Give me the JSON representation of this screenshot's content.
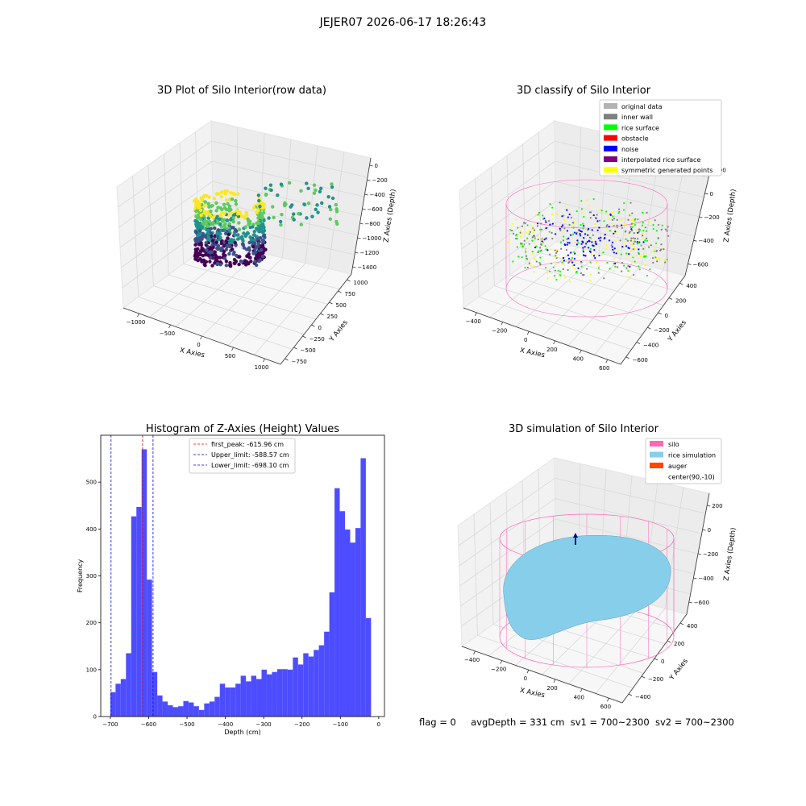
{
  "suptitle": "JEJER07 2026-06-17 18:26:43",
  "status": {
    "flag": "flag = 0",
    "avg_depth": "avgDepth = 331 cm",
    "sv1": "sv1 = 700~2300",
    "sv2": "sv2 = 700~2300"
  },
  "colors": {
    "pane": "#f2f2f2",
    "grid": "#d9d9d9",
    "hist_bar": "#4d4dff",
    "silo": "#ff69b4",
    "rice_sim": "#87ceeb",
    "auger": "#ff4500"
  },
  "chart_data": [
    {
      "type": "scatter",
      "projection": "3d",
      "title": "3D Plot of Silo Interior(row data)",
      "xlabel": "X Axies",
      "ylabel": "Y Axies",
      "zlabel": "Z Axies (Depth)",
      "xticks": [
        "−1000",
        "−500",
        "0",
        "500",
        "1000"
      ],
      "yticks": [
        "−750",
        "−500",
        "−250",
        "0",
        "250",
        "500",
        "750",
        "1000"
      ],
      "zticks": [
        "0",
        "−200",
        "−400",
        "−600",
        "−800",
        "−1000",
        "−1200",
        "−1400"
      ],
      "colormap": "viridis",
      "grid": true
    },
    {
      "type": "scatter",
      "projection": "3d",
      "title": "3D classify of Silo Interior",
      "xlabel": "X Axies",
      "ylabel": "Y Axies",
      "zlabel": "Z Axies (Depth)",
      "xticks": [
        "−400",
        "−200",
        "0",
        "200",
        "400",
        "600"
      ],
      "yticks": [
        "−600",
        "−400",
        "−200",
        "0",
        "200",
        "400"
      ],
      "zticks": [
        "200",
        "0",
        "−200",
        "−400",
        "−600"
      ],
      "legend_position": "upper right",
      "legend": [
        {
          "label": "original data",
          "color": "#b3b3b3"
        },
        {
          "label": "inner wall",
          "color": "#808080"
        },
        {
          "label": "rice surface",
          "color": "#00ff00"
        },
        {
          "label": "obstacle",
          "color": "#ff0000"
        },
        {
          "label": "noise",
          "color": "#0000ff"
        },
        {
          "label": "interpolated rice surface",
          "color": "#800080"
        },
        {
          "label": "symmetric generated points",
          "color": "#ffff00"
        }
      ],
      "grid": true
    },
    {
      "type": "bar",
      "title": "Histogram of Z-Axies (Height) Values",
      "xlabel": "Depth (cm)",
      "ylabel": "Frequency",
      "xlim": [
        -725,
        15
      ],
      "ylim": [
        0,
        600
      ],
      "xticks": [
        -700,
        -600,
        -500,
        -400,
        -300,
        -200,
        -100,
        0
      ],
      "yticks": [
        0,
        100,
        200,
        300,
        400,
        500
      ],
      "bin_start": -700,
      "bin_width": 13.6,
      "values": [
        52,
        70,
        80,
        135,
        427,
        447,
        570,
        292,
        95,
        45,
        32,
        24,
        20,
        22,
        33,
        30,
        22,
        14,
        28,
        32,
        42,
        70,
        62,
        62,
        70,
        87,
        75,
        87,
        80,
        100,
        90,
        95,
        101,
        101,
        100,
        126,
        111,
        135,
        128,
        142,
        152,
        181,
        265,
        487,
        438,
        399,
        371,
        402,
        551,
        210
      ],
      "vlines": [
        {
          "x": -615.96,
          "color": "#ff0000",
          "label": "first_peak: -615.96 cm"
        },
        {
          "x": -588.57,
          "color": "#0000ff",
          "label": "Upper_limit: -588.57 cm"
        },
        {
          "x": -698.1,
          "color": "#0000ff",
          "label": "Lower_limit: -698.10 cm"
        }
      ],
      "legend_position": "upper center"
    },
    {
      "type": "surface",
      "projection": "3d",
      "title": "3D simulation of Silo Interior",
      "xlabel": "X Axies",
      "ylabel": "Y Axies",
      "zlabel": "Z Axies (Depth)",
      "xticks": [
        "−400",
        "−200",
        "0",
        "200",
        "400",
        "600"
      ],
      "yticks": [
        "−400",
        "−200",
        "0",
        "200",
        "400"
      ],
      "zticks": [
        "200",
        "0",
        "−200",
        "−400",
        "−600"
      ],
      "legend_position": "upper right",
      "legend": [
        {
          "label": "silo",
          "color": "#ff69b4"
        },
        {
          "label": "rice simulation",
          "color": "#87ceeb"
        },
        {
          "label": "auger",
          "color": "#ff4500"
        },
        {
          "label": "center(90,-10)",
          "color": "none"
        }
      ],
      "grid": true
    }
  ]
}
